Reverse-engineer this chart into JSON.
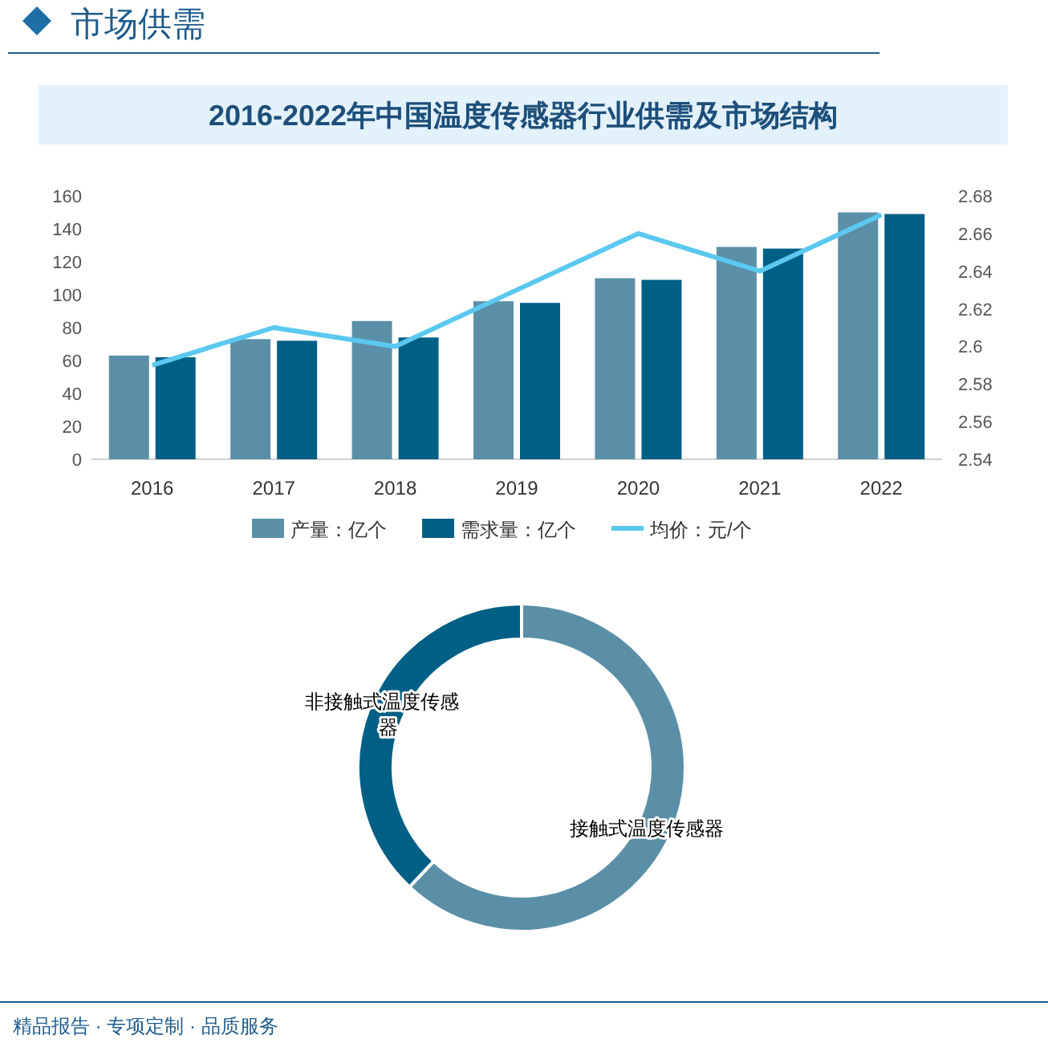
{
  "chart_data": [
    {
      "type": "bar",
      "title": "2016-2022年中国温度传感器行业供需及市场结构",
      "annotations": [
        "市场供需",
        "精品报告 · 专项定制 · 品质服务"
      ],
      "categories": [
        "2016",
        "2017",
        "2018",
        "2019",
        "2020",
        "2021",
        "2022"
      ],
      "series": [
        {
          "name": "产量：亿个",
          "color": "#5b8fa8",
          "values": [
            63,
            73,
            84,
            96,
            110,
            129,
            150
          ]
        },
        {
          "name": "需求量：亿个",
          "color": "#005f85",
          "values": [
            62,
            72,
            74,
            95,
            109,
            128,
            149
          ]
        },
        {
          "name": "均价：元/个",
          "type": "line",
          "axis": "y2",
          "color": "#5bc8f0",
          "values": [
            2.59,
            2.61,
            2.6,
            2.63,
            2.66,
            2.64,
            2.67
          ]
        }
      ],
      "ylim": [
        0,
        160
      ],
      "yticks": [
        0,
        20,
        40,
        60,
        80,
        100,
        120,
        140,
        160
      ],
      "y2lim": [
        2.54,
        2.68
      ],
      "y2ticks": [
        2.54,
        2.56,
        2.58,
        2.6,
        2.62,
        2.64,
        2.66,
        2.68
      ],
      "legend": "bottom"
    },
    {
      "type": "donut",
      "categories": [
        "接触式温度传感器",
        "非接触式温度传感器"
      ],
      "values": [
        62,
        38
      ],
      "colors": [
        "#5b8fa8",
        "#005f85"
      ]
    }
  ]
}
